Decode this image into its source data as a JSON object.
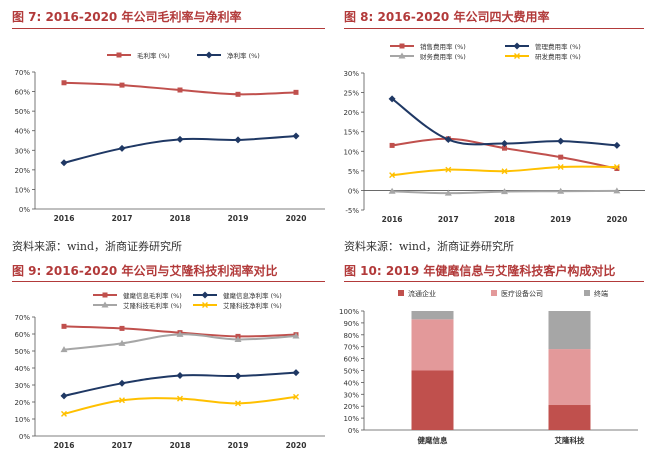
{
  "chart_data": [
    {
      "type": "line",
      "title": "图 7: 2016-2020 年公司毛利率与净利率",
      "categories": [
        "2016",
        "2017",
        "2018",
        "2019",
        "2020"
      ],
      "series": [
        {
          "name": "毛利率 (%)",
          "values": [
            64.5,
            63.3,
            60.8,
            58.6,
            59.6
          ],
          "color": "#c0504d",
          "marker": "square"
        },
        {
          "name": "净利率 (%)",
          "values": [
            23.6,
            31.0,
            35.6,
            35.3,
            37.3
          ],
          "color": "#1f3864",
          "marker": "diamond"
        }
      ],
      "ylim": [
        0,
        70
      ],
      "yticks": [
        "0%",
        "10%",
        "20%",
        "30%",
        "40%",
        "50%",
        "60%",
        "70%"
      ],
      "legend": "top",
      "source": "资料来源：wind，浙商证券研究所"
    },
    {
      "type": "line",
      "title": "图 8: 2016-2020 年公司四大费用率",
      "categories": [
        "2016",
        "2017",
        "2018",
        "2019",
        "2020"
      ],
      "series": [
        {
          "name": "销售费用率 (%)",
          "values": [
            11.5,
            13.2,
            10.8,
            8.5,
            5.6
          ],
          "color": "#c0504d",
          "marker": "square"
        },
        {
          "name": "管理费用率 (%)",
          "values": [
            23.4,
            13.0,
            12.0,
            12.6,
            11.5
          ],
          "color": "#1f3864",
          "marker": "diamond"
        },
        {
          "name": "财务费用率 (%)",
          "values": [
            -0.2,
            -0.7,
            -0.3,
            -0.2,
            -0.1
          ],
          "color": "#a6a6a6",
          "marker": "triangle"
        },
        {
          "name": "研发费用率 (%)",
          "values": [
            3.9,
            5.3,
            4.9,
            6.0,
            6.0
          ],
          "color": "#ffc000",
          "marker": "x"
        }
      ],
      "ylim": [
        -5,
        30
      ],
      "yticks": [
        "-5%",
        "0%",
        "5%",
        "10%",
        "15%",
        "20%",
        "25%",
        "30%"
      ],
      "legend": "top",
      "source": "资料来源：wind，浙商证券研究所"
    },
    {
      "type": "line",
      "title": "图 9: 2016-2020 年公司与艾隆科技利润率对比",
      "categories": [
        "2016",
        "2017",
        "2018",
        "2019",
        "2020"
      ],
      "series": [
        {
          "name": "健麾信息毛利率 (%)",
          "values": [
            64.5,
            63.3,
            60.8,
            58.6,
            59.6
          ],
          "color": "#c0504d",
          "marker": "square"
        },
        {
          "name": "健麾信息净利率 (%)",
          "values": [
            23.6,
            31.0,
            35.6,
            35.3,
            37.3
          ],
          "color": "#1f3864",
          "marker": "diamond"
        },
        {
          "name": "艾隆科技毛利率 (%)",
          "values": [
            50.8,
            54.5,
            59.8,
            56.8,
            58.8
          ],
          "color": "#a6a6a6",
          "marker": "triangle"
        },
        {
          "name": "艾隆科技净利率 (%)",
          "values": [
            13.0,
            21.0,
            22.0,
            19.2,
            23.0
          ],
          "color": "#ffc000",
          "marker": "x"
        }
      ],
      "ylim": [
        0,
        70
      ],
      "yticks": [
        "0%",
        "10%",
        "20%",
        "30%",
        "40%",
        "50%",
        "60%",
        "70%"
      ],
      "legend": "top",
      "source": ""
    },
    {
      "type": "bar",
      "stacked": true,
      "title": "图 10: 2019 年健麾信息与艾隆科技客户构成对比",
      "categories": [
        "健麾信息",
        "艾隆科技"
      ],
      "series": [
        {
          "name": "流通企业",
          "values": [
            50,
            21
          ],
          "color": "#c0504d"
        },
        {
          "name": "医疗设备公司",
          "values": [
            43,
            47
          ],
          "color": "#e3999a"
        },
        {
          "name": "终端",
          "values": [
            7,
            32
          ],
          "color": "#a6a6a6"
        }
      ],
      "ylim": [
        0,
        100
      ],
      "yticks": [
        "0%",
        "10%",
        "20%",
        "30%",
        "40%",
        "50%",
        "60%",
        "70%",
        "80%",
        "90%",
        "100%"
      ],
      "legend": "top",
      "source": ""
    }
  ]
}
